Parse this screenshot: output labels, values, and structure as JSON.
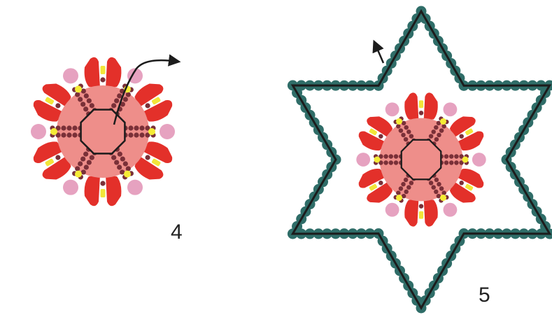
{
  "figures": [
    {
      "step_label": "4",
      "has_star_border": false
    },
    {
      "step_label": "5",
      "has_star_border": true
    }
  ],
  "colors": {
    "center": "#ee8e8a",
    "petal": "#e3302a",
    "petal_stripe": "#ffffff",
    "petal_tip_bead": "#f2e63a",
    "small_bead": "#7a3038",
    "accent_bead": "#f5ec36",
    "pink_bead": "#e6a2c0",
    "border_bead": "#2f6d68",
    "thread": "#1c1c1c"
  },
  "arrows": [
    "thread-direction-arrow",
    "thread-direction-arrow"
  ]
}
